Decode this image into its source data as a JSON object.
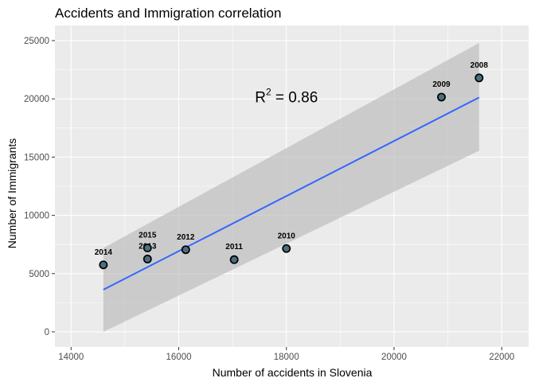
{
  "chart_data": {
    "type": "scatter",
    "title": "Accidents and Immigration correlation",
    "xlabel": "Number of accidents in Slovenia",
    "ylabel": "Number of Immigrants",
    "xlim": [
      13700,
      22500
    ],
    "ylim": [
      -1300,
      26300
    ],
    "xticks": [
      14000,
      16000,
      18000,
      20000,
      22000
    ],
    "yticks": [
      0,
      5000,
      10000,
      15000,
      20000,
      25000
    ],
    "grid": true,
    "points": [
      {
        "label": "2008",
        "x": 21580,
        "y": 21800
      },
      {
        "label": "2009",
        "x": 20880,
        "y": 20150
      },
      {
        "label": "2010",
        "x": 18000,
        "y": 7150
      },
      {
        "label": "2011",
        "x": 17030,
        "y": 6200
      },
      {
        "label": "2012",
        "x": 16130,
        "y": 7050
      },
      {
        "label": "2013",
        "x": 15420,
        "y": 6250
      },
      {
        "label": "2014",
        "x": 14600,
        "y": 5750
      },
      {
        "label": "2015",
        "x": 15420,
        "y": 7200
      }
    ],
    "trend_line": {
      "type": "linear",
      "x": [
        14600,
        21580
      ],
      "y": [
        3620,
        20120
      ],
      "band_upper": [
        7200,
        24800
      ],
      "band_lower": [
        0,
        15550
      ],
      "color": "#3366ff",
      "band_color": "#bdbdbd"
    },
    "annotation": {
      "base": "R",
      "superscript": "2",
      "rest": " = 0.86",
      "x": 18000,
      "y": 19700
    },
    "colors": {
      "panel_background": "#ebebeb",
      "grid": "#ffffff",
      "point_fill": "#4a6f80",
      "point_stroke": "#000000"
    }
  }
}
